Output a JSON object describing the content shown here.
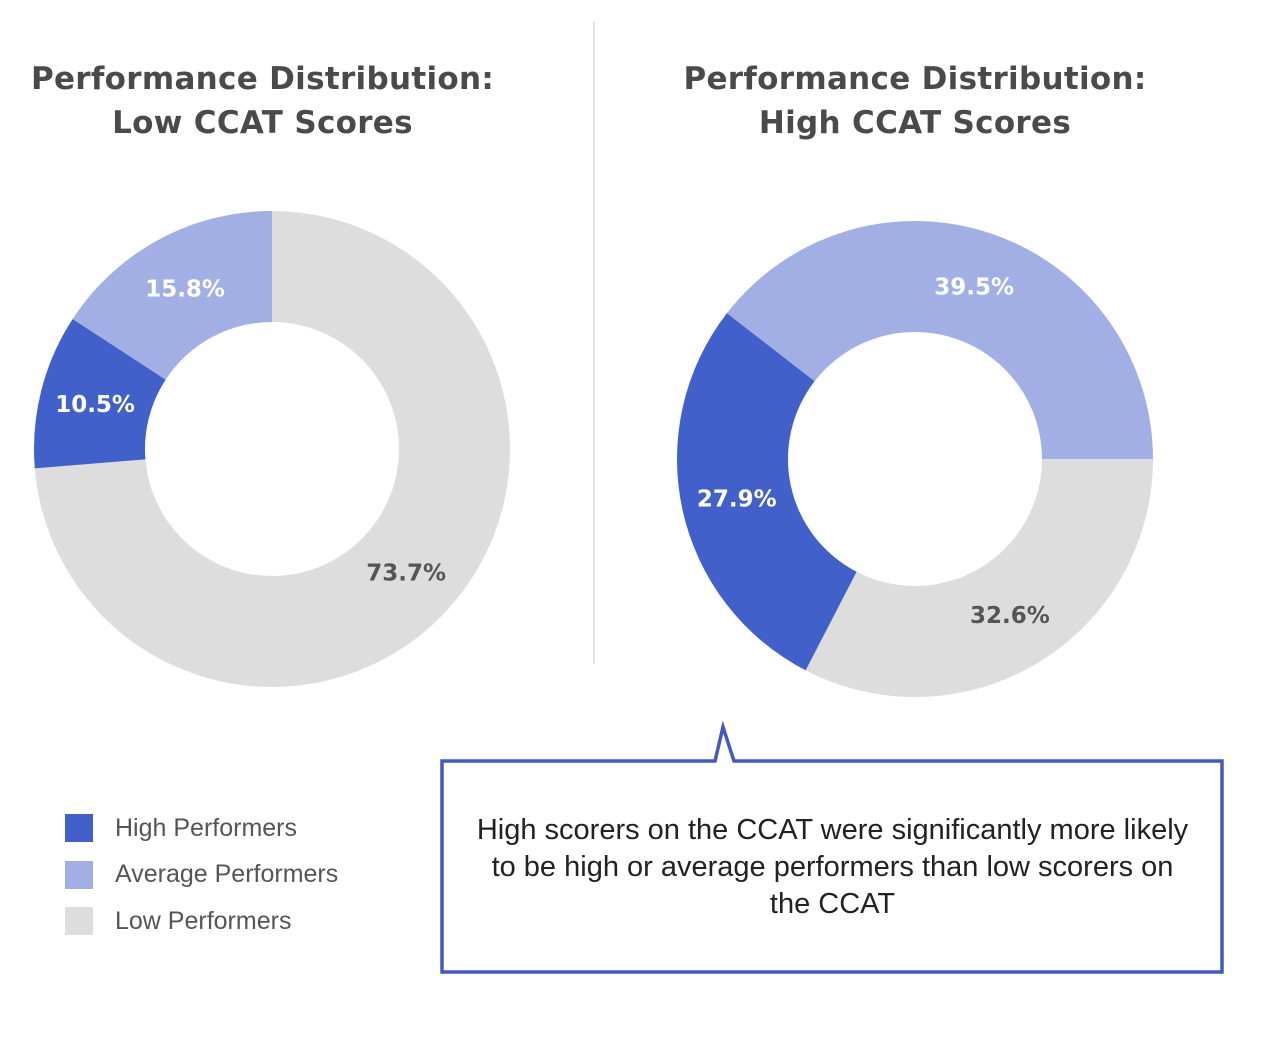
{
  "chart_data": [
    {
      "type": "pie",
      "donut": true,
      "title": "Performance Distribution:\nLow CCAT Scores",
      "categories": [
        "Low Performers",
        "High Performers",
        "Average Performers"
      ],
      "values": [
        73.7,
        10.5,
        15.8
      ],
      "labels": [
        "73.7%",
        "10.5%",
        "15.8%"
      ],
      "start_angle": 0
    },
    {
      "type": "pie",
      "donut": true,
      "title": "Performance Distribution:\nHigh CCAT Scores",
      "categories": [
        "Low Performers",
        "High Performers",
        "Average Performers"
      ],
      "values": [
        32.6,
        27.9,
        39.5
      ],
      "labels": [
        "32.6%",
        "27.9%",
        "39.5%"
      ],
      "start_angle": 90
    }
  ],
  "titles": {
    "left_line1": "Performance Distribution:",
    "left_line2": "Low CCAT Scores",
    "right_line1": "Performance Distribution:",
    "right_line2": "High CCAT Scores"
  },
  "legend": {
    "placement": "bottom-left",
    "items": [
      {
        "label": "High Performers",
        "color": "#4260c9"
      },
      {
        "label": "Average Performers",
        "color": "#a1afe4"
      },
      {
        "label": "Low Performers",
        "color": "#dcdddc"
      }
    ]
  },
  "colors": {
    "High Performers": "#4260c9",
    "Average Performers": "#a1afe4",
    "Low Performers": "#dcdddc",
    "callout_border": "#4459c0",
    "divider": "#e3e3e3"
  },
  "callout": {
    "text": "High scorers on the CCAT were significantly more likely to be high or average performers than low scorers on the CCAT"
  }
}
